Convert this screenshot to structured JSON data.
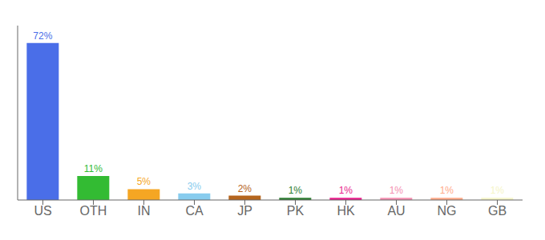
{
  "chart_data": {
    "type": "bar",
    "categories": [
      "US",
      "OTH",
      "IN",
      "CA",
      "JP",
      "PK",
      "HK",
      "AU",
      "NG",
      "GB"
    ],
    "values": [
      72,
      11,
      5,
      3,
      2,
      1,
      1,
      1,
      1,
      1
    ],
    "value_labels": [
      "72%",
      "11%",
      "5%",
      "3%",
      "2%",
      "1%",
      "1%",
      "1%",
      "1%",
      "1%"
    ],
    "colors": [
      "#4A6EE8",
      "#33BB33",
      "#F5A623",
      "#88CCEE",
      "#B5651D",
      "#2E7D32",
      "#E91E8C",
      "#F48FB1",
      "#FFAA88",
      "#F5F5C8"
    ],
    "ylim": [
      0,
      80
    ],
    "data_labels": true,
    "tick_labels": "x",
    "grid": false
  }
}
